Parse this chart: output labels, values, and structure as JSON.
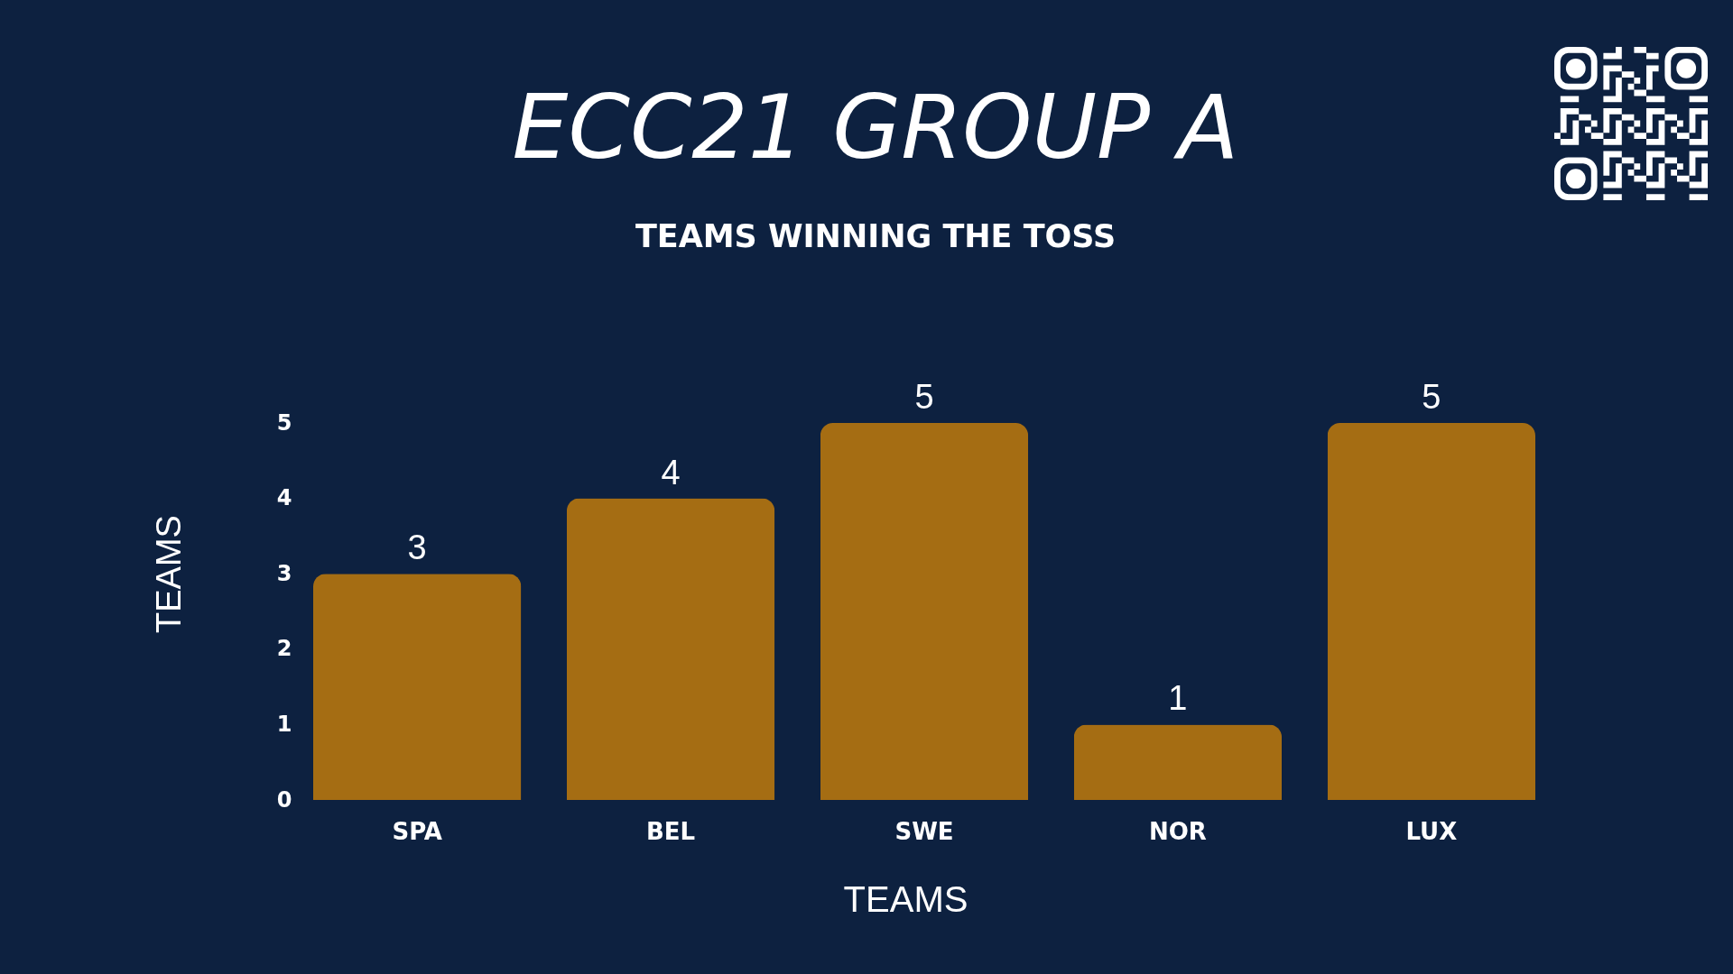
{
  "chart_data": {
    "type": "bar",
    "title": "ECC21 GROUP A",
    "subtitle": "TEAMS WINNING THE TOSS",
    "xlabel": "TEAMS",
    "ylabel": "TEAMS",
    "categories": [
      "SPA",
      "BEL",
      "SWE",
      "NOR",
      "LUX"
    ],
    "values": [
      3,
      4,
      5,
      1,
      5
    ],
    "color": "#a56d13",
    "ylim": [
      0,
      5
    ],
    "yticks": [
      0,
      1,
      2,
      3,
      4,
      5
    ],
    "data_labels": true
  }
}
